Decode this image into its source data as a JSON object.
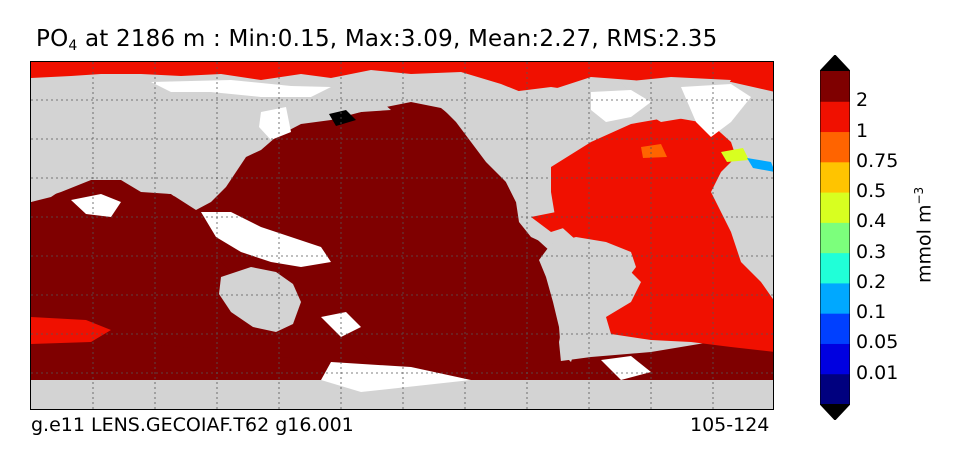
{
  "title": {
    "variable": "PO",
    "subscript": "4",
    "rest": " at 2186 m : Min:0.15, Max:3.09, Mean:2.27, RMS:2.35"
  },
  "footer": {
    "case": "g.e11 LENS.GECOIAF.T62 g16.001",
    "years": "105-124"
  },
  "colorbar": {
    "unit_base": "mmol m",
    "unit_exp": "−3",
    "ticks": [
      "2",
      "1",
      "0.75",
      "0.5",
      "0.4",
      "0.3",
      "0.2",
      "0.1",
      "0.05",
      "0.01"
    ],
    "colors": [
      "#00007f",
      "#0000e0",
      "#0040ff",
      "#00a8ff",
      "#20ffd8",
      "#7cff7c",
      "#d8ff20",
      "#ffc400",
      "#ff6400",
      "#f01000",
      "#7f0000"
    ]
  },
  "map_colors": {
    "land": "#d3d3d3",
    "pacific_indian_southern": "#7f0000",
    "atlantic_arctic": "#f01000",
    "no_data": "#ffffff"
  }
}
